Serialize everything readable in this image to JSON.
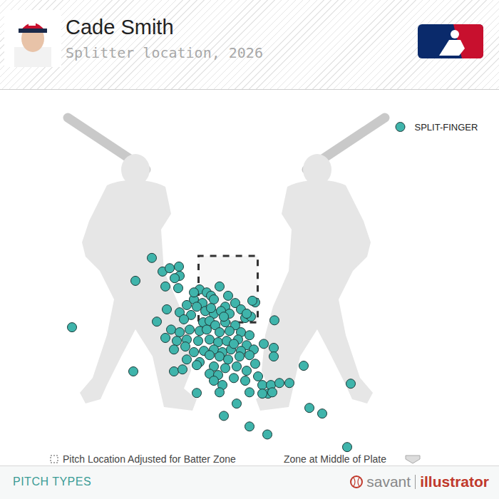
{
  "chart_data": {
    "type": "scatter",
    "title": "Cade Smith",
    "subtitle": "Splitter location, 2026",
    "series": [
      {
        "name": "SPLIT-FINGER",
        "color": "#3fb4ab",
        "marker": "circle",
        "x": [
          -2.14,
          -1.84,
          -1.64,
          -1.38,
          -1.36,
          -1.5,
          -2.6,
          -1.76,
          -1.4,
          -0.8,
          -0.24,
          -0.6,
          -0.48,
          -0.96,
          -0.72,
          -0.4,
          0.0,
          0.2,
          -0.08,
          0.36,
          0.76,
          -0.88,
          -1.16,
          -1.36,
          -1.04,
          -1.24,
          -0.64,
          -0.4,
          -0.2,
          0.04,
          0.48,
          -1.72,
          -2.0,
          -0.7,
          -0.52,
          -0.36,
          -0.08,
          0.2,
          0.64,
          1.3,
          -1.6,
          -1.36,
          -1.08,
          -0.8,
          -0.6,
          -0.24,
          0.04,
          0.36,
          0.6,
          -1.76,
          -1.44,
          -1.16,
          -0.84,
          -0.52,
          -0.28,
          -0.04,
          0.28,
          0.52,
          1.0,
          1.28,
          -1.52,
          -1.2,
          -0.96,
          -0.68,
          -0.4,
          -0.16,
          0.08,
          0.36,
          0.72,
          -1.16,
          -0.8,
          -0.52,
          -0.24,
          0.0,
          0.32,
          0.6,
          0.76,
          1.28,
          -1.52,
          -1.28,
          -0.88,
          -0.4,
          -0.08,
          0.24,
          0.52,
          2.12,
          -2.66,
          -0.52,
          -0.28,
          0.16,
          0.48,
          0.84,
          0.96,
          1.2,
          1.12,
          1.44,
          1.72,
          -0.4,
          -0.16,
          0.6,
          0.96,
          1.24,
          -0.88,
          -0.24,
          3.44,
          0.24,
          -0.12,
          2.28,
          2.64,
          0.6,
          1.1,
          3.34,
          -4.38,
          0.68,
          0.52,
          -0.48,
          -0.96,
          -0.12,
          0.16
        ],
        "y": [
          3.44,
          3.03,
          3.13,
          3.18,
          2.9,
          2.83,
          2.75,
          2.58,
          2.53,
          2.49,
          2.58,
          2.4,
          2.3,
          2.19,
          2.08,
          2.19,
          2.3,
          2.08,
          1.97,
          1.89,
          2.1,
          1.97,
          2.02,
          1.8,
          1.72,
          1.59,
          1.84,
          1.76,
          1.84,
          1.76,
          1.63,
          1.89,
          1.52,
          1.5,
          1.54,
          1.41,
          1.5,
          1.41,
          1.67,
          1.56,
          1.28,
          1.2,
          1.28,
          1.24,
          1.28,
          1.2,
          1.24,
          1.2,
          1.11,
          1.03,
          0.94,
          0.98,
          0.94,
          0.98,
          0.9,
          0.94,
          0.98,
          0.81,
          0.85,
          0.73,
          0.68,
          0.77,
          0.6,
          0.64,
          0.68,
          0.6,
          0.68,
          0.64,
          0.68,
          0.38,
          0.3,
          0.51,
          0.47,
          0.38,
          0.47,
          0.51,
          0.25,
          0.47,
          0.02,
          0.08,
          0.21,
          0.17,
          0.12,
          0.17,
          0.04,
          0.19,
          0.02,
          -0.05,
          -0.09,
          -0.18,
          -0.26,
          -0.13,
          -0.39,
          -0.39,
          -0.65,
          -0.33,
          -0.33,
          -0.26,
          -0.39,
          -0.61,
          -0.65,
          -0.61,
          -0.63,
          -0.61,
          -0.35,
          -0.95,
          -1.32,
          -1.08,
          -1.25,
          -1.64,
          -1.88,
          -2.26,
          1.35,
          2.15,
          1.76,
          1.93,
          2.4,
          1.67,
          0.85
        ]
      }
    ],
    "xlim": [
      -6.24,
      7.44
    ],
    "ylim": [
      -2.45,
      8.42
    ],
    "zone": {
      "x": [
        -0.83,
        0.83
      ],
      "y": [
        1.5,
        3.5
      ]
    },
    "grid": false,
    "tick_labels": false,
    "legend": "top right",
    "annotations": [
      "Pitch Location Adjusted for Batter Zone",
      "Zone at Middle of Plate"
    ],
    "footer": "PITCH TYPES",
    "brand": [
      "savant",
      "illustrator"
    ]
  }
}
